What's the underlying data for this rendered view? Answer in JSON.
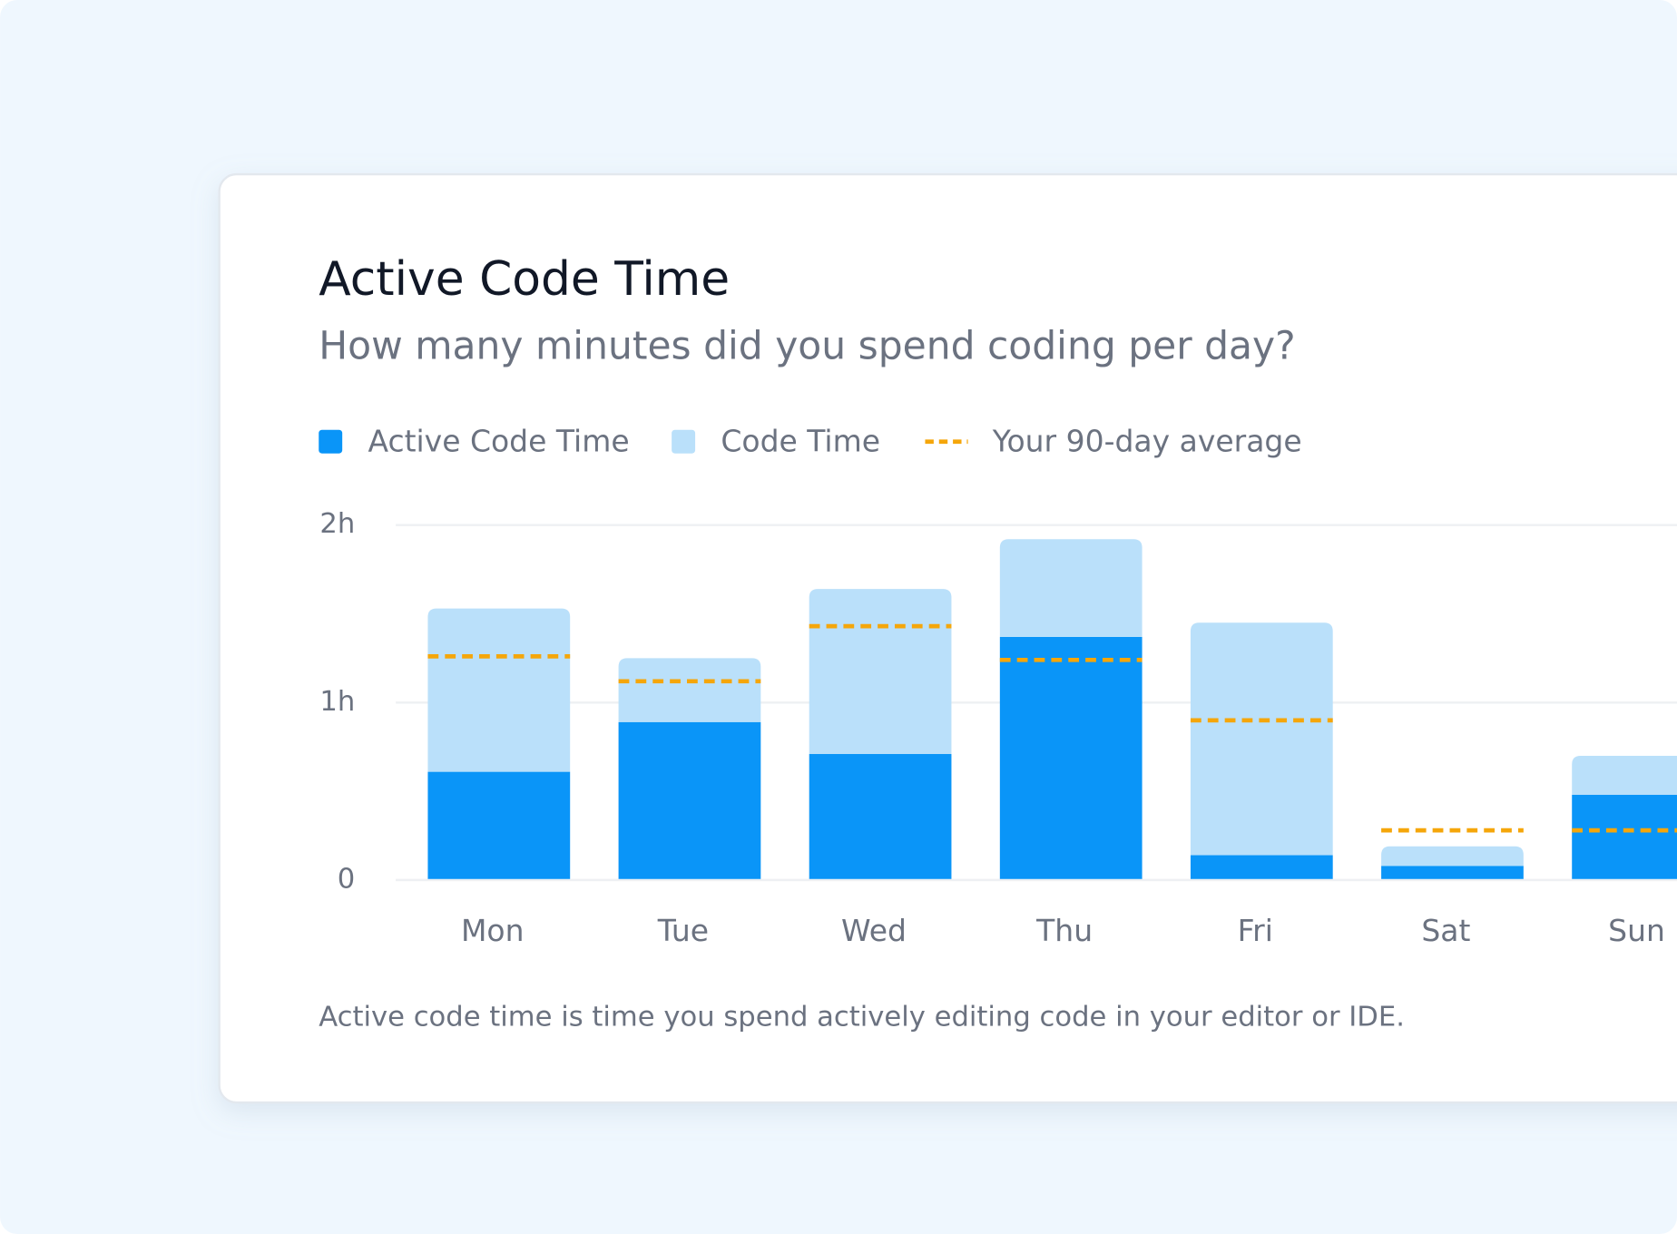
{
  "chart_data": {
    "type": "stacked-bar",
    "title": "Active Code Time",
    "subtitle": "How many minutes did you spend coding per day?",
    "categories": [
      "Mon",
      "Tue",
      "Wed",
      "Thu",
      "Fri",
      "Sat",
      "Sun"
    ],
    "series": [
      {
        "name": "Active Code Time",
        "color": "#0a95f8",
        "values": [
          0.61,
          0.89,
          0.71,
          1.37,
          0.14,
          0.08,
          0.48
        ]
      },
      {
        "name": "Code Time",
        "color": "#bae0fa",
        "values": [
          0.92,
          0.36,
          0.93,
          0.55,
          1.31,
          0.11,
          0.22
        ]
      }
    ],
    "average": {
      "name": "Your 90-day average",
      "color": "#f5a60a",
      "values": [
        1.26,
        1.12,
        1.43,
        1.24,
        0.9,
        0.28,
        0.28
      ]
    },
    "ylim": [
      0,
      2
    ],
    "yticks": [
      0,
      {
        "value": 1,
        "label": "1h"
      },
      {
        "value": 2,
        "label": "2h"
      }
    ],
    "grid": true,
    "footnote": "Active code time is time you spend actively editing code in your editor or IDE."
  }
}
